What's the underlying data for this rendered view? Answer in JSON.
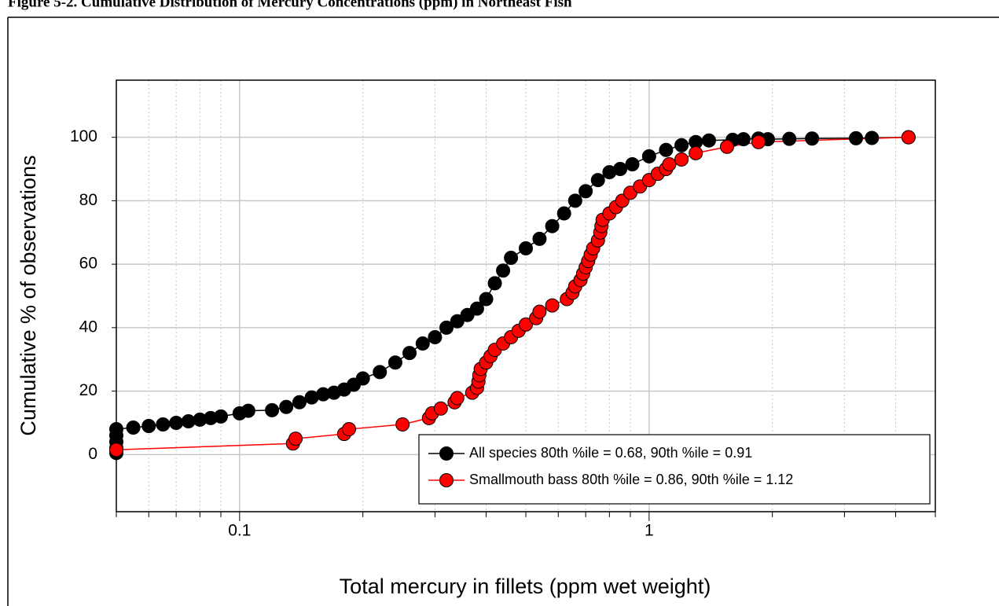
{
  "chart_data": {
    "type": "line",
    "title": "Figure 5-2. Cumulative Distribution of Mercury Concentrations (ppm) in Northeast Fish",
    "x_label": "Total mercury in fillets (ppm wet weight)",
    "y_label": "Cumulative % of observations",
    "xscale": "log",
    "xlim": [
      0.05,
      5
    ],
    "xticks": [
      0.1,
      1
    ],
    "xminorticks": [
      0.05,
      0.06,
      0.07,
      0.08,
      0.09,
      0.2,
      0.3,
      0.4,
      0.5,
      0.6,
      0.7,
      0.8,
      0.9,
      2,
      3,
      4,
      5
    ],
    "ylim": [
      -18,
      118
    ],
    "yticks": [
      0,
      20,
      40,
      60,
      80,
      100
    ],
    "grid": true,
    "legend": "lower right",
    "series": [
      {
        "name": "All species 80th %ile = 0.68, 90th %ile = 0.91",
        "color": "#000000",
        "line_color": "#000000",
        "x": [
          0.05,
          0.05,
          0.05,
          0.05,
          0.05,
          0.055,
          0.06,
          0.065,
          0.07,
          0.075,
          0.08,
          0.085,
          0.09,
          0.1,
          0.105,
          0.12,
          0.13,
          0.14,
          0.15,
          0.16,
          0.17,
          0.18,
          0.19,
          0.2,
          0.22,
          0.24,
          0.26,
          0.28,
          0.3,
          0.32,
          0.34,
          0.36,
          0.38,
          0.4,
          0.42,
          0.44,
          0.46,
          0.5,
          0.54,
          0.58,
          0.62,
          0.66,
          0.7,
          0.75,
          0.8,
          0.85,
          0.91,
          1.0,
          1.1,
          1.2,
          1.3,
          1.4,
          1.6,
          1.7,
          1.85,
          1.95,
          2.2,
          2.5,
          3.2,
          3.5,
          4.3
        ],
        "values": [
          0.5,
          2,
          4,
          6,
          8,
          8.5,
          9,
          9.5,
          10,
          10.5,
          11,
          11.5,
          12,
          13,
          13.8,
          14,
          15,
          16.5,
          18,
          19,
          19.5,
          20.5,
          22,
          24,
          26,
          29,
          32,
          35,
          37,
          40,
          42,
          44,
          46,
          49,
          54,
          58,
          62,
          65,
          68,
          72,
          76,
          80,
          83,
          86.5,
          89,
          90,
          91.5,
          94,
          96,
          97.5,
          98.5,
          99,
          99.2,
          99.4,
          99.6,
          99.4,
          99.5,
          99.6,
          99.7,
          99.8,
          100
        ]
      },
      {
        "name": "Smallmouth bass 80th %ile = 0.86, 90th %ile = 1.12",
        "color": "#ff0000",
        "line_color": "#ff0000",
        "x": [
          0.05,
          0.135,
          0.137,
          0.18,
          0.185,
          0.25,
          0.29,
          0.295,
          0.31,
          0.335,
          0.34,
          0.37,
          0.38,
          0.383,
          0.385,
          0.388,
          0.4,
          0.41,
          0.42,
          0.44,
          0.46,
          0.48,
          0.5,
          0.53,
          0.54,
          0.58,
          0.63,
          0.65,
          0.66,
          0.68,
          0.69,
          0.7,
          0.71,
          0.72,
          0.73,
          0.75,
          0.76,
          0.765,
          0.77,
          0.8,
          0.83,
          0.86,
          0.9,
          0.95,
          1.0,
          1.05,
          1.1,
          1.12,
          1.2,
          1.3,
          1.55,
          1.85,
          4.3
        ],
        "values": [
          1.5,
          3.5,
          5,
          6.5,
          8,
          9.5,
          11.5,
          13,
          14.5,
          16.5,
          17.8,
          19.5,
          21,
          23,
          25,
          27,
          29,
          31,
          33,
          35,
          37,
          39,
          41,
          43,
          45,
          47,
          49,
          51,
          53,
          55,
          57,
          59,
          61,
          63,
          65,
          67.5,
          70,
          72,
          74,
          76,
          78,
          80,
          82.5,
          84.5,
          86.5,
          88.5,
          90,
          91.5,
          93,
          95,
          97,
          98.5,
          100
        ]
      }
    ]
  }
}
